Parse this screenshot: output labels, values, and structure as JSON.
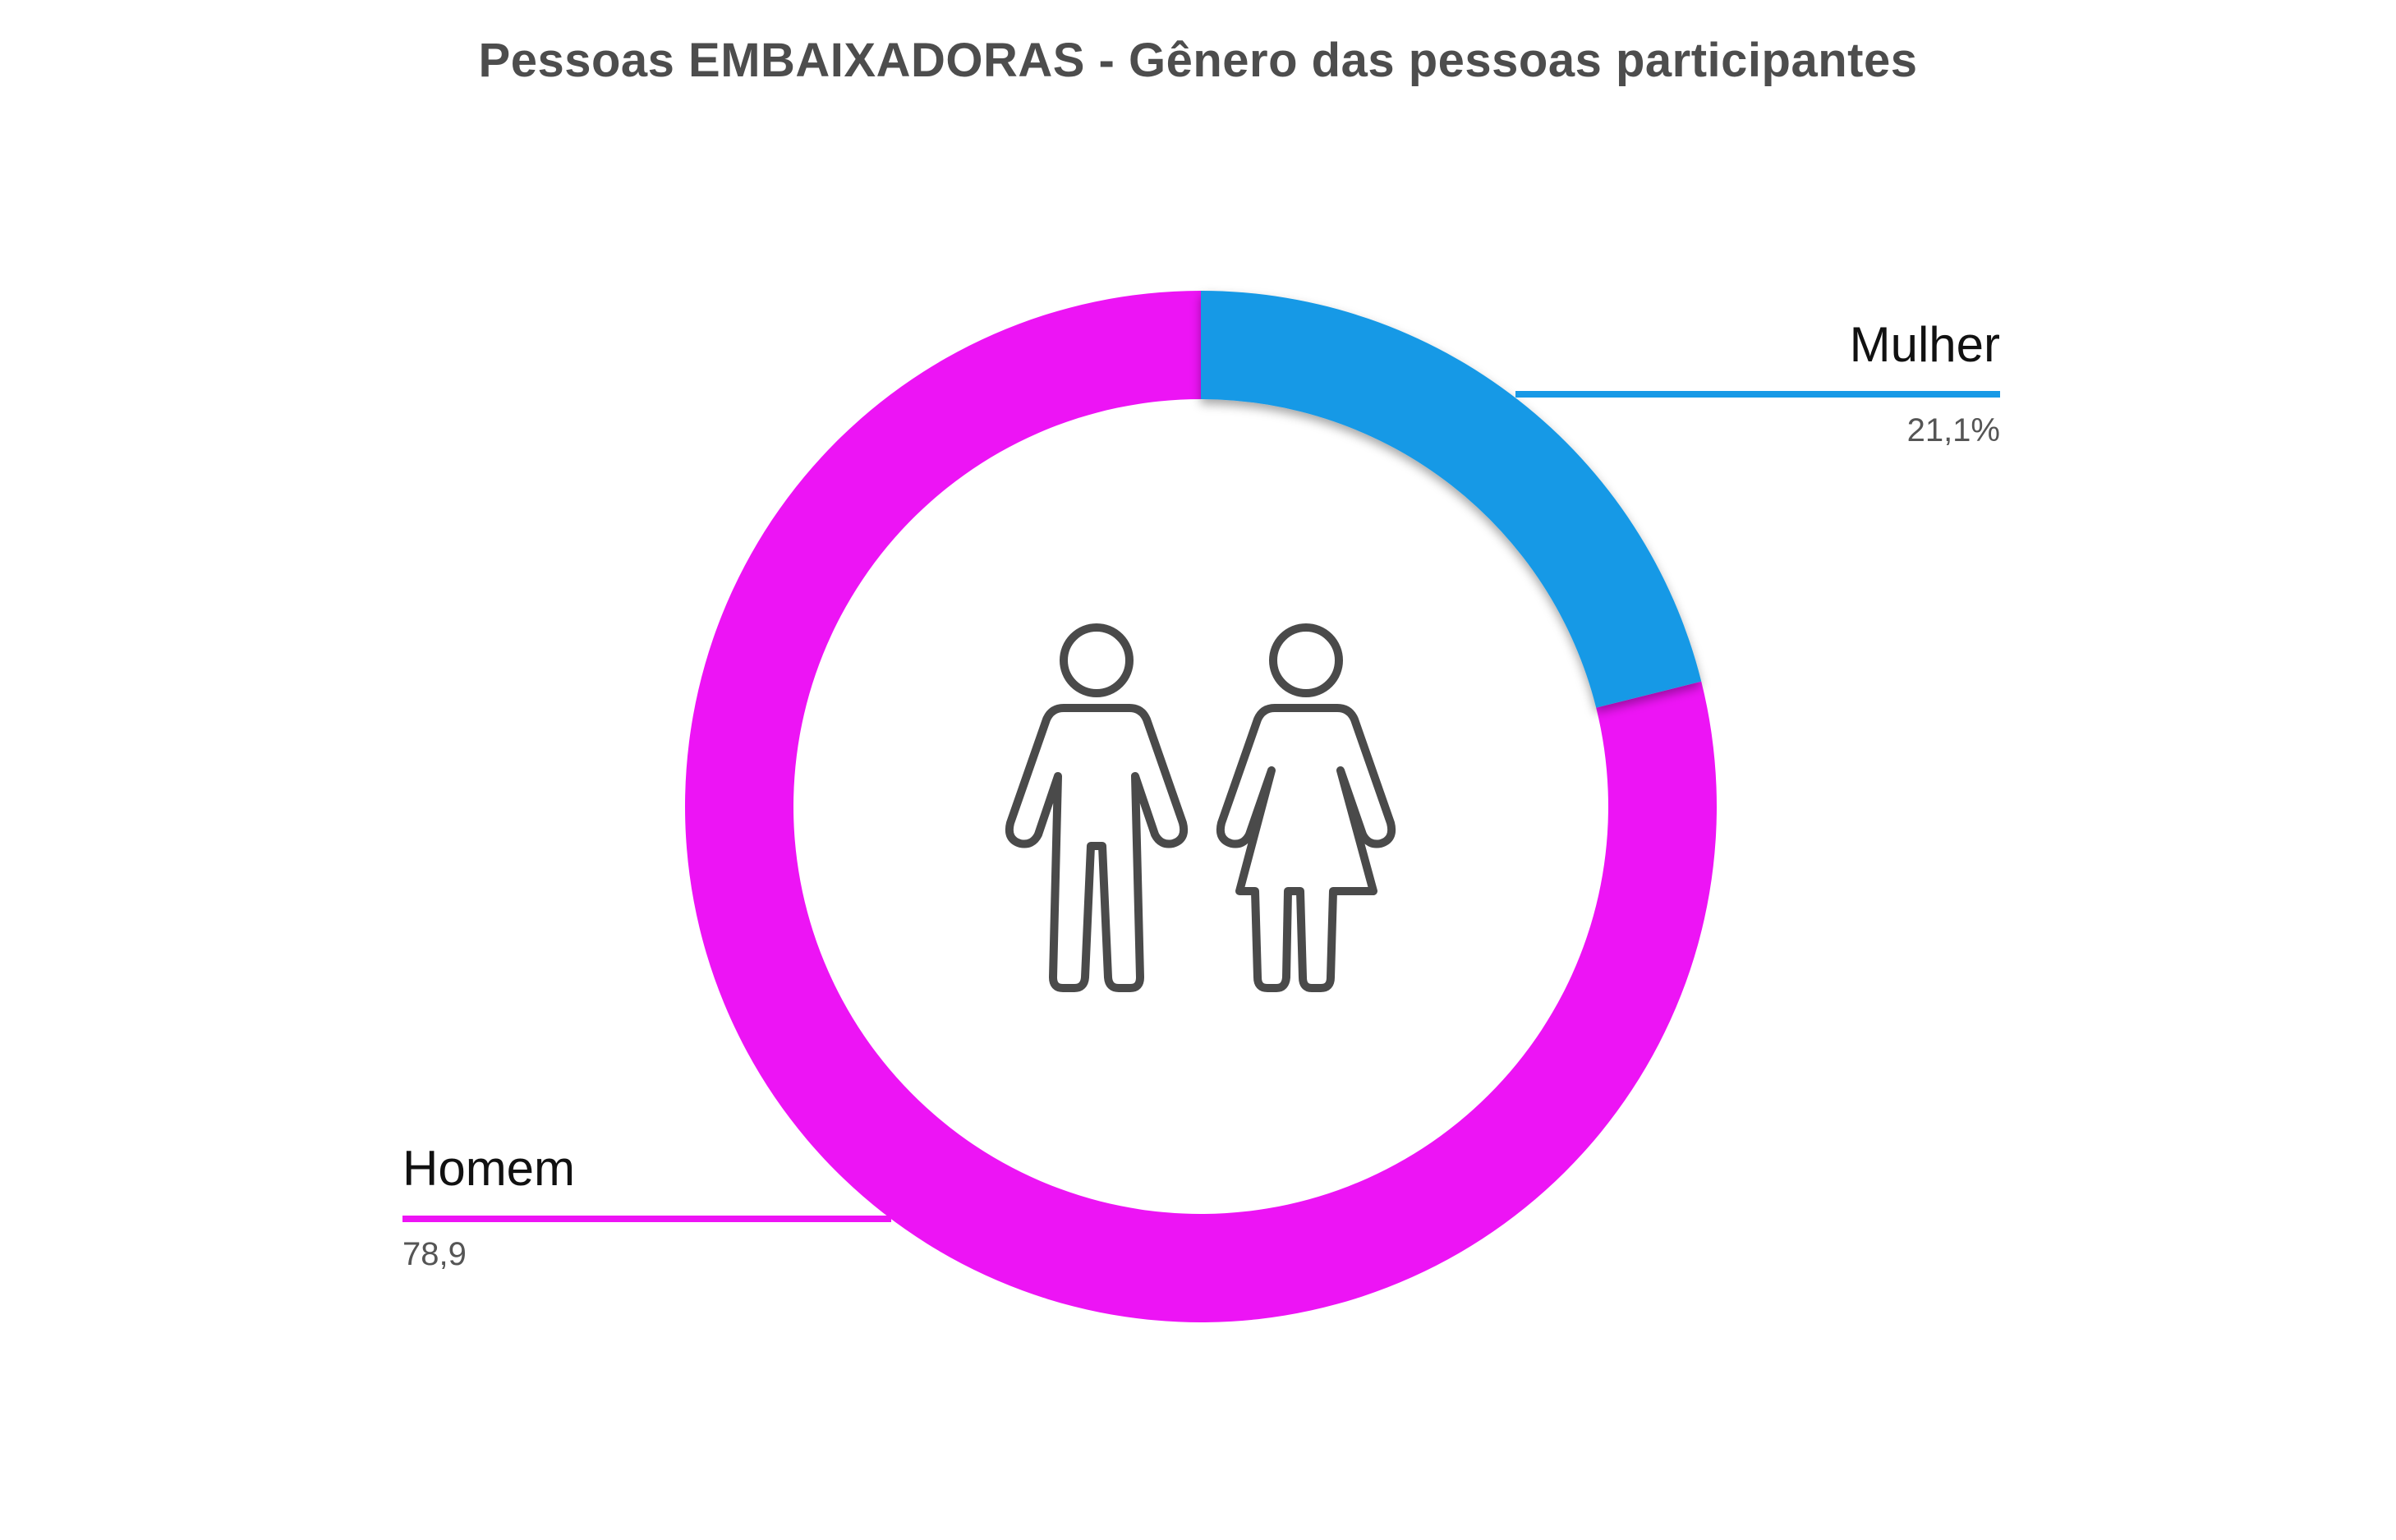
{
  "chart_data": {
    "type": "pie",
    "style": "donut",
    "title": "Pessoas EMBAIXADORAS - Gênero das pessoas participantes",
    "slices": [
      {
        "label": "Mulher",
        "value": 21.1,
        "display": "21,1%",
        "color": "#1799e6"
      },
      {
        "label": "Homem",
        "value": 78.9,
        "display": "78,9",
        "color": "#ed14f5"
      }
    ],
    "center_icon": "man-and-woman-icon"
  }
}
